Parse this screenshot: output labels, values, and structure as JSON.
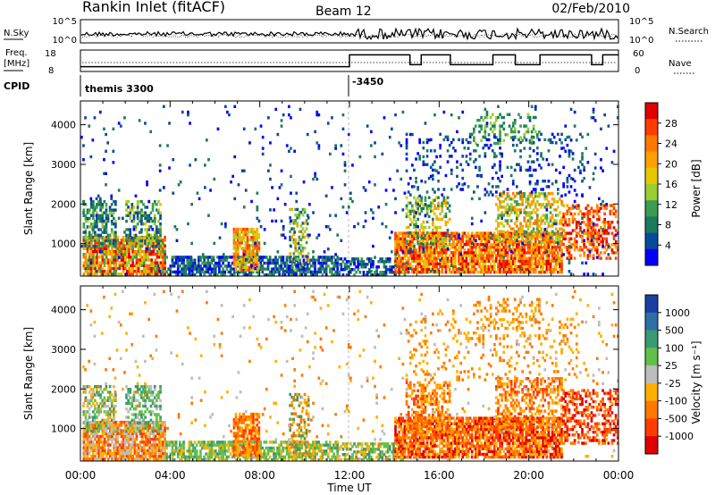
{
  "header": {
    "title": "Rankin Inlet (fitACF)",
    "beam": "Beam 12",
    "date": "02/Feb/2010"
  },
  "chart_data": [
    {
      "type": "line",
      "panel": "noise",
      "left_label": "N.Sky",
      "right_label": "N.Search",
      "y_ticks_left": [
        "10^5",
        "10^0"
      ],
      "y_ticks_right": [
        "10^5",
        "10^0"
      ]
    },
    {
      "type": "line",
      "panel": "frequency",
      "left_label_1": "Freq.",
      "left_label_2": "[MHz]",
      "right_label": "Nave",
      "y_ticks_left": [
        "18",
        "8"
      ],
      "y_ticks_right": [
        "60",
        "0"
      ],
      "freq_segments": [
        {
          "start": 0,
          "end": 12,
          "value": 10
        },
        {
          "start": 12,
          "end": 14.7,
          "value": 16
        },
        {
          "start": 14.7,
          "end": 15.2,
          "value": 11
        },
        {
          "start": 15.2,
          "end": 16.5,
          "value": 16
        },
        {
          "start": 16.5,
          "end": 18.4,
          "value": 11
        },
        {
          "start": 18.4,
          "end": 19.4,
          "value": 16
        },
        {
          "start": 19.4,
          "end": 20.5,
          "value": 11
        },
        {
          "start": 20.5,
          "end": 22.8,
          "value": 16
        },
        {
          "start": 22.8,
          "end": 23.3,
          "value": 11
        },
        {
          "start": 23.3,
          "end": 24,
          "value": 16
        }
      ]
    },
    {
      "type": "table",
      "panel": "cpid",
      "label": "CPID",
      "entries": [
        {
          "time": 0,
          "text": "themis 3300"
        },
        {
          "time": 12,
          "text": "-3450"
        }
      ]
    },
    {
      "type": "heatmap",
      "panel": "power",
      "ylabel": "Slant Range [km]",
      "y_ticks": [
        "1000",
        "2000",
        "3000",
        "4000"
      ],
      "ylim": [
        180,
        4600
      ],
      "colorbar_label": "Power [dB]",
      "colorbar_ticks": [
        "28",
        "24",
        "20",
        "16",
        "12",
        "8",
        "4"
      ],
      "colorbar_colors": [
        "#e00000",
        "#ff3c00",
        "#ff7800",
        "#ffa000",
        "#e6c800",
        "#9acd32",
        "#3c9c50",
        "#1c7a5c",
        "#0a4a9c",
        "#0000ff"
      ]
    },
    {
      "type": "heatmap",
      "panel": "velocity",
      "ylabel": "Slant Range [km]",
      "y_ticks": [
        "1000",
        "2000",
        "3000",
        "4000"
      ],
      "ylim": [
        180,
        4600
      ],
      "xlabel": "Time UT",
      "x_ticks": [
        "00:00",
        "04:00",
        "08:00",
        "12:00",
        "16:00",
        "20:00",
        "00:00"
      ],
      "xlim": [
        0,
        24
      ],
      "colorbar_label": "Velocity [m s⁻¹]",
      "colorbar_ticks": [
        "1000",
        "500",
        "100",
        "25",
        "-25",
        "-100",
        "-500",
        "-1000"
      ],
      "colorbar_colors": [
        "#1a3fa0",
        "#2f6fa8",
        "#3a9a74",
        "#62c04a",
        "#bdbdbd",
        "#ffb000",
        "#ff7800",
        "#ff3c00",
        "#e00000"
      ]
    }
  ]
}
